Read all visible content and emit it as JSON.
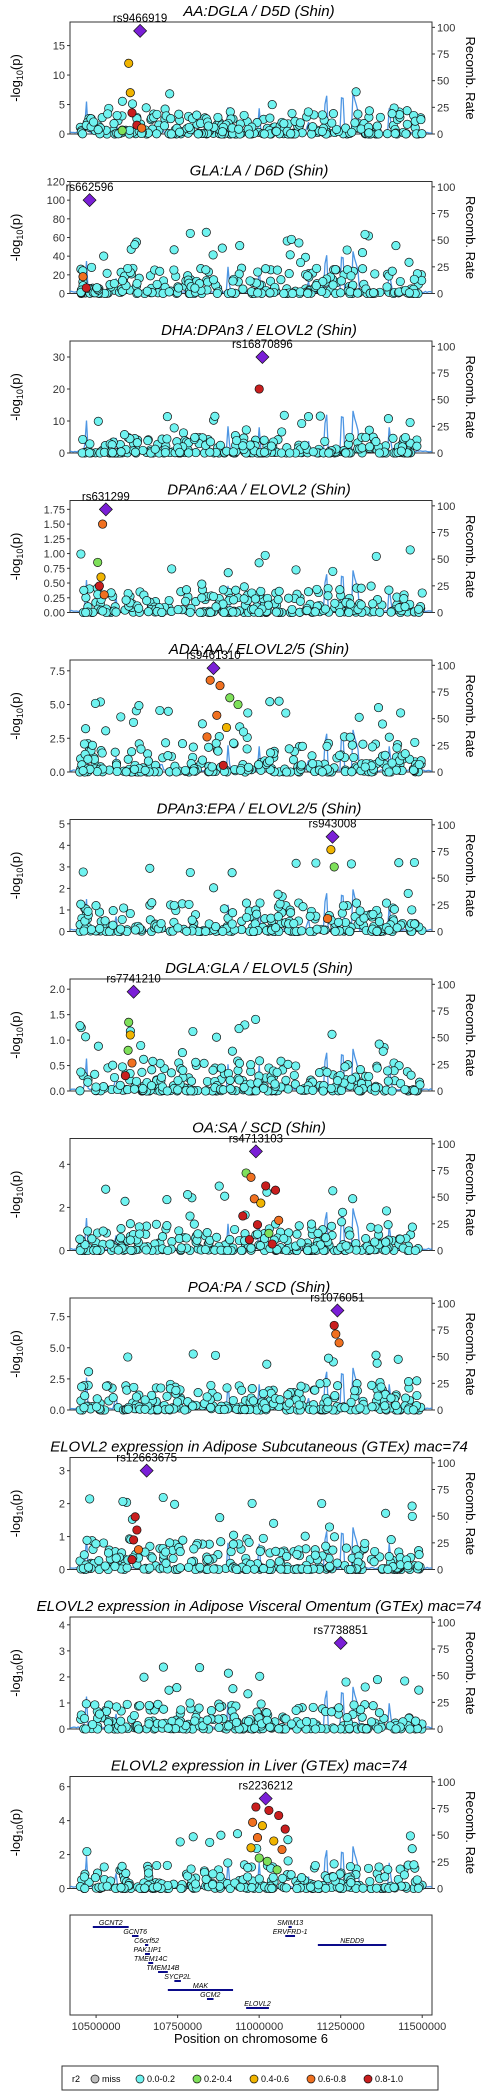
{
  "chart_data": {
    "type": "scatter",
    "shared": {
      "xlabel": "Position on chromosome 6",
      "x_ticks": [
        10500000,
        10750000,
        11000000,
        11250000,
        11500000
      ],
      "xlim": [
        10420000,
        11530000
      ],
      "ylabel_left": "-log10(p)",
      "ylabel_right": "Recomb. Rate",
      "recomb_ticks": [
        0,
        25,
        50,
        75,
        100
      ],
      "recomb_range": [
        0,
        100
      ]
    },
    "panels": [
      {
        "title": "AA:DGLA / D5D (Shin)",
        "lead_snp": "rs9466919",
        "lead_x": 10635000,
        "lead_y": 17.5,
        "ylim": [
          0,
          19
        ],
        "yticks": [
          0,
          5,
          10,
          15
        ],
        "ytick_labels": [
          "0",
          "5",
          "10",
          "15"
        ],
        "base": 3.5,
        "hot": [
          {
            "x": 10600000,
            "y": 12.0,
            "r2": "0.4-0.6"
          },
          {
            "x": 10605000,
            "y": 7.0,
            "r2": "0.4-0.6"
          },
          {
            "x": 10610000,
            "y": 3.6,
            "r2": "0.8-1.0"
          },
          {
            "x": 10625000,
            "y": 1.5,
            "r2": "0.8-1.0"
          },
          {
            "x": 10580000,
            "y": 0.6,
            "r2": "0.2-0.4"
          },
          {
            "x": 10640000,
            "y": 1.0,
            "r2": "0.6-0.8"
          }
        ]
      },
      {
        "title": "GLA:LA / D6D (Shin)",
        "lead_snp": "rs662596",
        "lead_x": 10480000,
        "lead_y": 100,
        "ylim": [
          0,
          120
        ],
        "yticks": [
          0,
          20,
          40,
          60,
          80,
          100,
          120
        ],
        "ytick_labels": [
          "0",
          "20",
          "40",
          "60",
          "80",
          "100",
          "120"
        ],
        "base": 28,
        "hot": [
          {
            "x": 10460000,
            "y": 18,
            "r2": "0.6-0.8"
          },
          {
            "x": 10470000,
            "y": 6,
            "r2": "0.8-1.0"
          }
        ]
      },
      {
        "title": "DHA:DPAn3 / ELOVL2 (Shin)",
        "lead_snp": "rs16870896",
        "lead_x": 11010000,
        "lead_y": 30,
        "ylim": [
          0,
          35
        ],
        "yticks": [
          0,
          10,
          20,
          30
        ],
        "ytick_labels": [
          "0",
          "10",
          "20",
          "30"
        ],
        "base": 5,
        "hot": [
          {
            "x": 11000000,
            "y": 20,
            "r2": "0.8-1.0"
          }
        ]
      },
      {
        "title": "DPAn6:AA / ELOVL2 (Shin)",
        "lead_snp": "rs631299",
        "lead_x": 10530000,
        "lead_y": 1.75,
        "ylim": [
          0,
          1.9
        ],
        "yticks": [
          0,
          0.25,
          0.5,
          0.75,
          1.0,
          1.25,
          1.5,
          1.75
        ],
        "ytick_labels": [
          "0.00",
          "0.25",
          "0.50",
          "0.75",
          "1.00",
          "1.25",
          "1.50",
          "1.75"
        ],
        "base": 0.45,
        "hot": [
          {
            "x": 10520000,
            "y": 1.5,
            "r2": "0.6-0.8"
          },
          {
            "x": 10505000,
            "y": 0.85,
            "r2": "0.2-0.4"
          },
          {
            "x": 10515000,
            "y": 0.6,
            "r2": "0.4-0.6"
          },
          {
            "x": 10510000,
            "y": 0.45,
            "r2": "0.8-1.0"
          },
          {
            "x": 10525000,
            "y": 0.3,
            "r2": "0.6-0.8"
          }
        ]
      },
      {
        "title": "ADA:AA / ELOVL2/5 (Shin)",
        "lead_snp": "rs9461310",
        "lead_x": 10860000,
        "lead_y": 7.7,
        "ylim": [
          0,
          8.3
        ],
        "yticks": [
          0,
          2.5,
          5.0,
          7.5
        ],
        "ytick_labels": [
          "0.0",
          "2.5",
          "5.0",
          "7.5"
        ],
        "base": 2.2,
        "hot": [
          {
            "x": 10850000,
            "y": 6.8,
            "r2": "0.6-0.8"
          },
          {
            "x": 10880000,
            "y": 6.4,
            "r2": "0.6-0.8"
          },
          {
            "x": 10910000,
            "y": 5.5,
            "r2": "0.2-0.4"
          },
          {
            "x": 10935000,
            "y": 5.0,
            "r2": "0.2-0.4"
          },
          {
            "x": 10870000,
            "y": 4.2,
            "r2": "0.6-0.8"
          },
          {
            "x": 10900000,
            "y": 3.3,
            "r2": "0.4-0.6"
          },
          {
            "x": 10840000,
            "y": 2.6,
            "r2": "0.6-0.8"
          },
          {
            "x": 10890000,
            "y": 0.5,
            "r2": "0.8-1.0"
          }
        ]
      },
      {
        "title": "DPAn3:EPA / ELOVL2/5 (Shin)",
        "lead_snp": "rs943008",
        "lead_x": 11225000,
        "lead_y": 4.4,
        "ylim": [
          0,
          5.2
        ],
        "yticks": [
          0,
          1,
          2,
          3,
          4,
          5
        ],
        "ytick_labels": [
          "0",
          "1",
          "2",
          "3",
          "4",
          "5"
        ],
        "base": 1.4,
        "hot": [
          {
            "x": 11220000,
            "y": 3.8,
            "r2": "0.4-0.6"
          },
          {
            "x": 11230000,
            "y": 3.0,
            "r2": "0.2-0.4"
          },
          {
            "x": 11210000,
            "y": 0.6,
            "r2": "0.6-0.8"
          }
        ]
      },
      {
        "title": "DGLA:GLA / ELOVL5 (Shin)",
        "lead_snp": "rs7741210",
        "lead_x": 10615000,
        "lead_y": 1.95,
        "ylim": [
          0,
          2.2
        ],
        "yticks": [
          0,
          0.5,
          1.0,
          1.5,
          2.0
        ],
        "ytick_labels": [
          "0.0",
          "0.5",
          "1.0",
          "1.5",
          "2.0"
        ],
        "base": 0.6,
        "hot": [
          {
            "x": 10600000,
            "y": 1.35,
            "r2": "0.2-0.4"
          },
          {
            "x": 10605000,
            "y": 1.1,
            "r2": "0.4-0.6"
          },
          {
            "x": 10598000,
            "y": 0.8,
            "r2": "0.2-0.4"
          },
          {
            "x": 10610000,
            "y": 0.55,
            "r2": "0.6-0.8"
          },
          {
            "x": 10590000,
            "y": 0.3,
            "r2": "0.8-1.0"
          }
        ]
      },
      {
        "title": "OA:SA / SCD (Shin)",
        "lead_snp": "rs4713103",
        "lead_x": 10990000,
        "lead_y": 4.6,
        "ylim": [
          0,
          5.2
        ],
        "yticks": [
          0,
          2,
          4
        ],
        "ytick_labels": [
          "0",
          "2",
          "4"
        ],
        "base": 1.3,
        "hot": [
          {
            "x": 10960000,
            "y": 3.6,
            "r2": "0.2-0.4"
          },
          {
            "x": 10975000,
            "y": 3.4,
            "r2": "0.6-0.8"
          },
          {
            "x": 11020000,
            "y": 3.0,
            "r2": "0.8-1.0"
          },
          {
            "x": 11050000,
            "y": 2.8,
            "r2": "0.8-1.0"
          },
          {
            "x": 10985000,
            "y": 2.4,
            "r2": "0.6-0.8"
          },
          {
            "x": 11005000,
            "y": 2.2,
            "r2": "0.4-0.6"
          },
          {
            "x": 10950000,
            "y": 1.6,
            "r2": "0.8-1.0"
          },
          {
            "x": 11060000,
            "y": 1.4,
            "r2": "0.6-0.8"
          },
          {
            "x": 10995000,
            "y": 1.2,
            "r2": "0.8-1.0"
          },
          {
            "x": 11030000,
            "y": 0.8,
            "r2": "0.2-0.4"
          },
          {
            "x": 10970000,
            "y": 0.5,
            "r2": "0.8-1.0"
          },
          {
            "x": 11040000,
            "y": 0.3,
            "r2": "0.8-1.0"
          }
        ]
      },
      {
        "title": "POA:PA / SCD (Shin)",
        "lead_snp": "rs1076051",
        "lead_x": 11240000,
        "lead_y": 8.0,
        "ylim": [
          0,
          9
        ],
        "yticks": [
          0,
          2.5,
          5.0,
          7.5
        ],
        "ytick_labels": [
          "0.0",
          "2.5",
          "5.0",
          "7.5"
        ],
        "base": 2.0,
        "hot": [
          {
            "x": 11230000,
            "y": 6.8,
            "r2": "0.8-1.0"
          },
          {
            "x": 11235000,
            "y": 6.1,
            "r2": "0.6-0.8"
          },
          {
            "x": 11245000,
            "y": 5.4,
            "r2": "0.6-0.8"
          }
        ]
      },
      {
        "title": "ELOVL2 expression in Adipose Subcutaneous (GTEx) mac=74",
        "lead_snp": "rs12663675",
        "lead_x": 10655000,
        "lead_y": 3.0,
        "ylim": [
          0,
          3.4
        ],
        "yticks": [
          0,
          1,
          2,
          3
        ],
        "ytick_labels": [
          "0",
          "1",
          "2",
          "3"
        ],
        "base": 0.95,
        "hot": [
          {
            "x": 10620000,
            "y": 1.6,
            "r2": "0.8-1.0"
          },
          {
            "x": 10625000,
            "y": 1.2,
            "r2": "0.8-1.0"
          },
          {
            "x": 10615000,
            "y": 0.9,
            "r2": "0.8-1.0"
          },
          {
            "x": 10630000,
            "y": 0.6,
            "r2": "0.6-0.8"
          },
          {
            "x": 10610000,
            "y": 0.3,
            "r2": "0.8-1.0"
          }
        ]
      },
      {
        "title": "ELOVL2 expression in Adipose Visceral Omentum (GTEx) mac=74",
        "lead_snp": "rs7738851",
        "lead_x": 11250000,
        "lead_y": 3.3,
        "ylim": [
          0,
          4.3
        ],
        "yticks": [
          0,
          1,
          2,
          3,
          4
        ],
        "ytick_labels": [
          "0",
          "1",
          "2",
          "3",
          "4"
        ],
        "base": 1.0,
        "hot": []
      },
      {
        "title": "ELOVL2 expression in Liver (GTEx) mac=74",
        "lead_snp": "rs2236212",
        "lead_x": 11020000,
        "lead_y": 5.3,
        "ylim": [
          0,
          6.6
        ],
        "yticks": [
          0,
          2,
          4,
          6
        ],
        "ytick_labels": [
          "0",
          "2",
          "4",
          "6"
        ],
        "base": 1.4,
        "hot": [
          {
            "x": 10990000,
            "y": 4.8,
            "r2": "0.8-1.0"
          },
          {
            "x": 11030000,
            "y": 4.6,
            "r2": "0.8-1.0"
          },
          {
            "x": 11060000,
            "y": 4.3,
            "r2": "0.8-1.0"
          },
          {
            "x": 10980000,
            "y": 3.9,
            "r2": "0.6-0.8"
          },
          {
            "x": 11010000,
            "y": 3.7,
            "r2": "0.4-0.6"
          },
          {
            "x": 11080000,
            "y": 3.5,
            "r2": "0.8-1.0"
          },
          {
            "x": 10995000,
            "y": 3.0,
            "r2": "0.6-0.8"
          },
          {
            "x": 11045000,
            "y": 2.8,
            "r2": "0.4-0.6"
          },
          {
            "x": 10975000,
            "y": 2.4,
            "r2": "0.4-0.6"
          },
          {
            "x": 11070000,
            "y": 2.3,
            "r2": "0.6-0.8"
          },
          {
            "x": 11000000,
            "y": 1.8,
            "r2": "0.2-0.4"
          },
          {
            "x": 11025000,
            "y": 1.6,
            "r2": "0.2-0.4"
          },
          {
            "x": 11055000,
            "y": 1.1,
            "r2": "0.2-0.4"
          }
        ]
      }
    ],
    "genes": [
      {
        "name": "GCNT2",
        "start": 10490000,
        "end": 10600000,
        "strand": "+",
        "row": 0
      },
      {
        "name": "GCNT6",
        "start": 10610000,
        "end": 10630000,
        "strand": "+",
        "row": 1
      },
      {
        "name": "C6orf52",
        "start": 10650000,
        "end": 10660000,
        "strand": "+",
        "row": 2
      },
      {
        "name": "PAK1IP1",
        "start": 10650000,
        "end": 10665000,
        "strand": "+",
        "row": 3
      },
      {
        "name": "TMEM14C",
        "start": 10660000,
        "end": 10675000,
        "strand": "+",
        "row": 4
      },
      {
        "name": "TMEM14B",
        "start": 10690000,
        "end": 10720000,
        "strand": "+",
        "row": 5
      },
      {
        "name": "SYCP2L",
        "start": 10740000,
        "end": 10760000,
        "strand": "+",
        "row": 6
      },
      {
        "name": "MAK",
        "start": 10720000,
        "end": 10920000,
        "strand": "-",
        "row": 7
      },
      {
        "name": "GCM2",
        "start": 10840000,
        "end": 10860000,
        "strand": "-",
        "row": 8
      },
      {
        "name": "ELOVL2",
        "start": 10960000,
        "end": 11030000,
        "strand": "-",
        "row": 9
      },
      {
        "name": "SMIM13",
        "start": 11090000,
        "end": 11100000,
        "strand": "+",
        "row": 0
      },
      {
        "name": "ERVFRD-1",
        "start": 11080000,
        "end": 11110000,
        "strand": "-",
        "row": 1
      },
      {
        "name": "NEDD9",
        "start": 11180000,
        "end": 11390000,
        "strand": "-",
        "row": 2
      }
    ],
    "legend": {
      "title": "r2",
      "items": [
        "miss",
        "0.0-0.2",
        "0.2-0.4",
        "0.4-0.6",
        "0.6-0.8",
        "0.8-1.0"
      ]
    },
    "colors": {
      "miss": "#bfbfbf",
      "0.0-0.2": "#6ff3f0",
      "0.2-0.4": "#7ee05a",
      "0.4-0.6": "#f0b400",
      "0.6-0.8": "#f07020",
      "0.8-1.0": "#c81e1e",
      "lead": "#7a1fd6",
      "recomb": "#3b8be0",
      "gene": "#0a0a8a"
    }
  }
}
